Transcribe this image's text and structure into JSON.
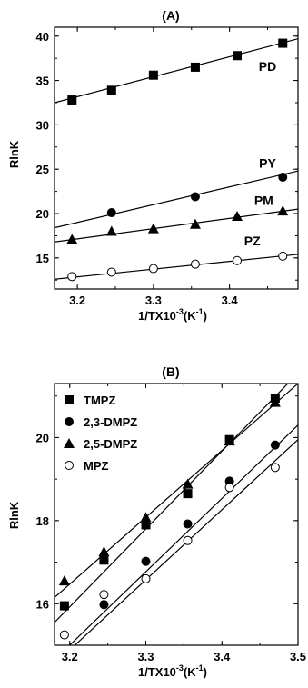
{
  "chart_data": [
    {
      "type": "scatter",
      "title": "(A)",
      "xlabel": "1/TX10",
      "xlabel_sup": "-3",
      "xlabel_unit": "(K",
      "xlabel_unit_sup": "-1",
      "xlabel_close": ")",
      "ylabel": "RlnK",
      "xlim": [
        3.17,
        3.49
      ],
      "ylim": [
        11.5,
        41
      ],
      "xticks": [
        3.2,
        3.3,
        3.4
      ],
      "xtick_labels": [
        "3.2",
        "3.3",
        "3.4"
      ],
      "yticks": [
        15,
        20,
        25,
        30,
        35,
        40
      ],
      "ytick_labels": [
        "15",
        "20",
        "25",
        "30",
        "35",
        "40"
      ],
      "grid": false,
      "legend": "none",
      "series": [
        {
          "name": "PD",
          "marker": "square",
          "label_at": [
            3.45,
            36.1
          ],
          "x": [
            3.193,
            3.245,
            3.3,
            3.355,
            3.41,
            3.47
          ],
          "y": [
            32.8,
            33.9,
            35.6,
            36.5,
            37.8,
            39.2
          ],
          "fit": [
            [
              3.17,
              32.5
            ],
            [
              3.49,
              39.7
            ]
          ]
        },
        {
          "name": "PY",
          "marker": "circle-filled",
          "label_at": [
            3.45,
            25.2
          ],
          "x": [
            3.245,
            3.355,
            3.47
          ],
          "y": [
            20.1,
            21.9,
            24.1
          ],
          "fit": [
            [
              3.17,
              18.4
            ],
            [
              3.49,
              24.8
            ]
          ]
        },
        {
          "name": "PM",
          "marker": "triangle",
          "label_at": [
            3.445,
            21.0
          ],
          "x": [
            3.193,
            3.245,
            3.3,
            3.355,
            3.41,
            3.47
          ],
          "y": [
            17.1,
            18.0,
            18.3,
            18.8,
            19.7,
            20.3
          ],
          "fit": [
            [
              3.17,
              16.8
            ],
            [
              3.49,
              20.5
            ]
          ]
        },
        {
          "name": "PZ",
          "marker": "circle-open",
          "label_at": [
            3.43,
            16.4
          ],
          "x": [
            3.193,
            3.245,
            3.3,
            3.355,
            3.41,
            3.47
          ],
          "y": [
            12.9,
            13.4,
            13.8,
            14.3,
            14.7,
            15.2
          ],
          "fit": [
            [
              3.17,
              12.6
            ],
            [
              3.49,
              15.4
            ]
          ]
        }
      ]
    },
    {
      "type": "scatter",
      "title": "(B)",
      "xlabel": "1/TX10",
      "xlabel_sup": "-3",
      "xlabel_unit": "(K",
      "xlabel_unit_sup": "-1",
      "xlabel_close": ")",
      "ylabel": "RlnK",
      "xlim": [
        3.18,
        3.5
      ],
      "ylim": [
        15.0,
        21.3
      ],
      "xticks": [
        3.2,
        3.3,
        3.4,
        3.5
      ],
      "xtick_labels": [
        "3.2",
        "3.3",
        "3.4",
        "3.5"
      ],
      "yticks": [
        16,
        18,
        20
      ],
      "ytick_labels": [
        "16",
        "18",
        "20"
      ],
      "grid": false,
      "legend": "top-left",
      "series": [
        {
          "name": "TMPZ",
          "marker": "square",
          "x": [
            3.193,
            3.245,
            3.3,
            3.355,
            3.41,
            3.47
          ],
          "y": [
            15.95,
            17.05,
            17.9,
            18.65,
            19.95,
            20.95
          ],
          "fit": [
            [
              3.18,
              15.55
            ],
            [
              3.5,
              21.55
            ]
          ]
        },
        {
          "name": "2,3-DMPZ",
          "marker": "circle-filled",
          "x": [
            3.245,
            3.3,
            3.355,
            3.41,
            3.47
          ],
          "y": [
            15.98,
            17.02,
            17.92,
            18.95,
            19.82
          ],
          "fit": [
            [
              3.18,
              14.65
            ],
            [
              3.5,
              20.3
            ]
          ]
        },
        {
          "name": "2,5-DMPZ",
          "marker": "triangle",
          "x": [
            3.193,
            3.245,
            3.3,
            3.355,
            3.41,
            3.47
          ],
          "y": [
            16.55,
            17.25,
            18.08,
            18.88,
            19.92,
            20.85
          ],
          "fit": [
            [
              3.18,
              16.15
            ],
            [
              3.5,
              21.3
            ]
          ]
        },
        {
          "name": "MPZ",
          "marker": "circle-open",
          "x": [
            3.193,
            3.245,
            3.3,
            3.355,
            3.41,
            3.47
          ],
          "y": [
            15.25,
            16.22,
            16.6,
            17.52,
            18.8,
            19.28
          ],
          "fit": [
            [
              3.18,
              14.55
            ],
            [
              3.5,
              19.95
            ]
          ]
        }
      ]
    }
  ]
}
